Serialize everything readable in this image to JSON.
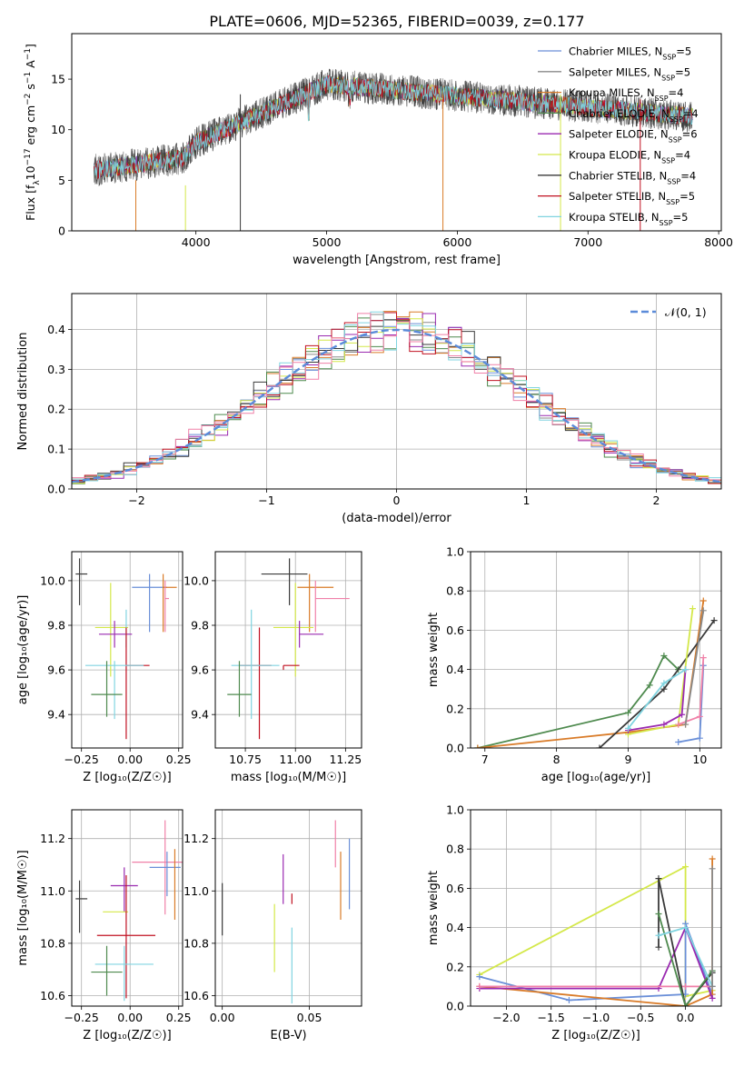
{
  "figure_title": "PLATE=0606, MJD=52365, FIBERID=0039, z=0.177",
  "colors": {
    "chabrier_miles": "#6a8fd8",
    "salpeter_miles": "#8a8a8a",
    "kroupa_miles": "#d97b28",
    "chabrier_elodie": "#4e8a4e",
    "salpeter_elodie": "#9a2ab0",
    "kroupa_elodie": "#d4e84a",
    "chabrier_stelib": "#3a3a3a",
    "salpeter_stelib": "#c01020",
    "kroupa_stelib": "#80d4e0",
    "pink": "#f080a8",
    "gauss": "#5b8bd9"
  },
  "chart_data": [
    {
      "type": "line",
      "panel": "spectrum",
      "xlabel": "wavelength [Angstrom, rest frame]",
      "ylabel_main": "Flux [f",
      "ylabel_sub": "λ",
      "ylabel_mid": "10",
      "ylabel_exp": "−17",
      "ylabel_rest": " erg cm",
      "ylabel_exp2": "−2",
      "ylabel_rest2": " s",
      "ylabel_exp3": "−1",
      "ylabel_rest3": " A",
      "ylabel_exp4": "−1",
      "ylabel_end": "]",
      "xlim": [
        3050,
        8020
      ],
      "ylim": [
        0,
        19.5
      ],
      "xticks": [
        "4000",
        "5000",
        "6000",
        "7000",
        "8000"
      ],
      "xtick_values": [
        4000,
        5000,
        6000,
        7000,
        8000
      ],
      "yticks": [
        "0",
        "5",
        "10",
        "15"
      ],
      "ytick_values": [
        0,
        5,
        10,
        15
      ],
      "x_range": [
        3220,
        7800
      ],
      "dips": [
        [
          3540,
          5
        ],
        [
          3920,
          4.5
        ],
        [
          4340,
          13.5
        ],
        [
          5890,
          13.5
        ],
        [
          6790,
          13.5
        ],
        [
          7400,
          13
        ]
      ],
      "legend_position": "top-right",
      "legend": [
        {
          "name": "Chabrier MILES, N",
          "sub": "SSP",
          "tail": "=5",
          "color_key": "chabrier_miles"
        },
        {
          "name": "Salpeter MILES, N",
          "sub": "SSP",
          "tail": "=5",
          "color_key": "salpeter_miles"
        },
        {
          "name": "Kroupa MILES, N",
          "sub": "SSP",
          "tail": "=4",
          "color_key": "kroupa_miles"
        },
        {
          "name": "Chabrier ELODIE, N",
          "sub": "SSP",
          "tail": "=4",
          "color_key": "chabrier_elodie"
        },
        {
          "name": "Salpeter ELODIE, N",
          "sub": "SSP",
          "tail": "=6",
          "color_key": "salpeter_elodie"
        },
        {
          "name": "Kroupa ELODIE, N",
          "sub": "SSP",
          "tail": "=4",
          "color_key": "kroupa_elodie"
        },
        {
          "name": "Chabrier STELIB, N",
          "sub": "SSP",
          "tail": "=4",
          "color_key": "chabrier_stelib"
        },
        {
          "name": "Salpeter STELIB, N",
          "sub": "SSP",
          "tail": "=5",
          "color_key": "salpeter_stelib"
        },
        {
          "name": "Kroupa STELIB, N",
          "sub": "SSP",
          "tail": "=5",
          "color_key": "kroupa_stelib"
        }
      ]
    },
    {
      "type": "line",
      "panel": "residuals",
      "xlabel": "(data-model)/error",
      "ylabel": "Normed distribution",
      "xlim": [
        -2.5,
        2.5
      ],
      "ylim": [
        0,
        0.49
      ],
      "xticks": [
        "−2",
        "−1",
        "0",
        "1",
        "2"
      ],
      "xtick_values": [
        -2,
        -1,
        0,
        1,
        2
      ],
      "yticks": [
        "0.0",
        "0.1",
        "0.2",
        "0.3",
        "0.4"
      ],
      "ytick_values": [
        0,
        0.1,
        0.2,
        0.3,
        0.4
      ],
      "grid": true,
      "bin_width": 0.1,
      "legend_position": "top-right",
      "gauss_label": "𝒩(0, 1)"
    },
    {
      "type": "scatter",
      "panel": "age-vs-Z",
      "xlabel": "Z [log₁₀(Z/Z☉)]",
      "ylabel": "age  [log₁₀(age/yr)]",
      "xlim": [
        -0.3,
        0.27
      ],
      "ylim": [
        9.25,
        10.13
      ],
      "xticks": [
        "−0.25",
        "0.00",
        "0.25"
      ],
      "xtick_values": [
        -0.25,
        0,
        0.25
      ],
      "yticks": [
        "9.4",
        "9.6",
        "9.8",
        "10.0"
      ],
      "ytick_values": [
        9.4,
        9.6,
        9.8,
        10.0
      ],
      "grid": true,
      "points": [
        {
          "x": -0.26,
          "y": 10.03,
          "xerr": [
            0.02,
            0.04
          ],
          "yerr": [
            0.14,
            0.07
          ],
          "c": "chabrier_stelib"
        },
        {
          "x": 0.1,
          "y": 9.97,
          "xerr": [
            0.09,
            0.09
          ],
          "yerr": [
            0.2,
            0.06
          ],
          "c": "chabrier_miles"
        },
        {
          "x": 0.17,
          "y": 9.97,
          "xerr": [
            0.0,
            0.07
          ],
          "yerr": [
            0.2,
            0.06
          ],
          "c": "kroupa_miles"
        },
        {
          "x": 0.18,
          "y": 9.92,
          "xerr": [
            0.0,
            0.02
          ],
          "yerr": [
            0.15,
            0.08
          ],
          "c": "pink"
        },
        {
          "x": -0.1,
          "y": 9.79,
          "xerr": [
            0.08,
            0.09
          ],
          "yerr": [
            0.22,
            0.2
          ],
          "c": "kroupa_elodie"
        },
        {
          "x": -0.08,
          "y": 9.76,
          "xerr": [
            0.08,
            0.09
          ],
          "yerr": [
            0.06,
            0.06
          ],
          "c": "salpeter_elodie"
        },
        {
          "x": -0.02,
          "y": 9.75,
          "xerr": [
            0.0,
            0.0
          ],
          "yerr": [
            0.05,
            0.12
          ],
          "c": "kroupa_stelib"
        },
        {
          "x": -0.02,
          "y": 9.62,
          "xerr": [
            0.0,
            0.12
          ],
          "yerr": [
            0.33,
            0.17
          ],
          "c": "salpeter_stelib"
        },
        {
          "x": -0.08,
          "y": 9.62,
          "xerr": [
            0.15,
            0.15
          ],
          "yerr": [
            0.24,
            0.02
          ],
          "c": "kroupa_stelib"
        },
        {
          "x": -0.12,
          "y": 9.49,
          "xerr": [
            0.08,
            0.08
          ],
          "yerr": [
            0.1,
            0.15
          ],
          "c": "chabrier_elodie"
        }
      ]
    },
    {
      "type": "scatter",
      "panel": "age-vs-mass",
      "xlabel": "mass [log₁₀(M/M☉)]",
      "ylabel": "",
      "xlim": [
        10.6,
        11.33
      ],
      "ylim": [
        9.25,
        10.13
      ],
      "xticks": [
        "10.75",
        "11.00",
        "11.25"
      ],
      "xtick_values": [
        10.75,
        11.0,
        11.25
      ],
      "yticks": [
        "9.4",
        "9.6",
        "9.8",
        "10.0"
      ],
      "ytick_values": [
        9.4,
        9.6,
        9.8,
        10.0
      ],
      "grid": true,
      "points": [
        {
          "x": 10.97,
          "y": 10.03,
          "xerr": [
            0.14,
            0.09
          ],
          "yerr": [
            0.14,
            0.07
          ],
          "c": "chabrier_stelib"
        },
        {
          "x": 11.07,
          "y": 9.97,
          "xerr": [
            0.06,
            0.12
          ],
          "yerr": [
            0.2,
            0.06
          ],
          "c": "kroupa_miles"
        },
        {
          "x": 11.1,
          "y": 9.92,
          "xerr": [
            0.0,
            0.17
          ],
          "yerr": [
            0.15,
            0.08
          ],
          "c": "pink"
        },
        {
          "x": 11.0,
          "y": 9.79,
          "xerr": [
            0.11,
            0.09
          ],
          "yerr": [
            0.22,
            0.2
          ],
          "c": "kroupa_elodie"
        },
        {
          "x": 11.02,
          "y": 9.76,
          "xerr": [
            0.0,
            0.12
          ],
          "yerr": [
            0.06,
            0.06
          ],
          "c": "salpeter_elodie"
        },
        {
          "x": 10.82,
          "y": 9.62,
          "xerr": [
            0.1,
            0.06
          ],
          "yerr": [
            0.33,
            0.17
          ],
          "c": "salpeter_stelib"
        },
        {
          "x": 10.78,
          "y": 9.62,
          "xerr": [
            0.1,
            0.14
          ],
          "yerr": [
            0.24,
            0.25
          ],
          "c": "kroupa_stelib"
        },
        {
          "x": 10.94,
          "y": 9.62,
          "xerr": [
            0.0,
            0.08
          ],
          "yerr": [
            0.02,
            0.0
          ],
          "c": "salpeter_stelib"
        },
        {
          "x": 10.72,
          "y": 9.49,
          "xerr": [
            0.06,
            0.06
          ],
          "yerr": [
            0.1,
            0.15
          ],
          "c": "chabrier_elodie"
        }
      ]
    },
    {
      "type": "line",
      "panel": "mass-weight-vs-age",
      "xlabel": "age  [log₁₀(age/yr)]",
      "ylabel": "mass weight",
      "xlim": [
        6.8,
        10.3
      ],
      "ylim": [
        0,
        1.0
      ],
      "xticks": [
        "7",
        "8",
        "9",
        "10"
      ],
      "xtick_values": [
        7,
        8,
        9,
        10
      ],
      "yticks": [
        "0.0",
        "0.2",
        "0.4",
        "0.6",
        "0.8",
        "1.0"
      ],
      "ytick_values": [
        0,
        0.2,
        0.4,
        0.6,
        0.8,
        1.0
      ],
      "grid": true,
      "series": [
        {
          "c": "chabrier_elodie",
          "x": [
            6.9,
            9.0,
            9.3,
            9.5,
            9.7
          ],
          "y": [
            0.0,
            0.18,
            0.32,
            0.47,
            0.4
          ]
        },
        {
          "c": "kroupa_miles",
          "x": [
            6.9,
            9.0,
            9.8,
            10.05
          ],
          "y": [
            0.0,
            0.08,
            0.12,
            0.75
          ]
        },
        {
          "c": "chabrier_stelib",
          "x": [
            8.6,
            9.5,
            10.2
          ],
          "y": [
            0.0,
            0.3,
            0.65
          ]
        },
        {
          "c": "kroupa_elodie",
          "x": [
            9.0,
            9.7,
            9.9
          ],
          "y": [
            0.07,
            0.12,
            0.71
          ]
        },
        {
          "c": "chabrier_miles",
          "x": [
            9.7,
            10.0,
            10.05
          ],
          "y": [
            0.03,
            0.05,
            0.42
          ]
        },
        {
          "c": "salpeter_elodie",
          "x": [
            9.0,
            9.5,
            9.75,
            9.8
          ],
          "y": [
            0.09,
            0.12,
            0.17,
            0.4
          ]
        },
        {
          "c": "pink",
          "x": [
            9.7,
            10.0,
            10.05
          ],
          "y": [
            0.12,
            0.16,
            0.46
          ]
        },
        {
          "c": "kroupa_stelib",
          "x": [
            9.0,
            9.5,
            9.8
          ],
          "y": [
            0.1,
            0.33,
            0.4
          ]
        },
        {
          "c": "salpeter_miles",
          "x": [
            9.8,
            10.05
          ],
          "y": [
            0.12,
            0.7
          ]
        }
      ]
    },
    {
      "type": "scatter",
      "panel": "mass-vs-Z",
      "xlabel": "Z [log₁₀(Z/Z☉)]",
      "ylabel": "mass [log₁₀(M/M☉)]",
      "xlim": [
        -0.3,
        0.27
      ],
      "ylim": [
        10.56,
        11.31
      ],
      "xticks": [
        "−0.25",
        "0.00",
        "0.25"
      ],
      "xtick_values": [
        -0.25,
        0,
        0.25
      ],
      "yticks": [
        "10.6",
        "10.8",
        "11.0",
        "11.2"
      ],
      "ytick_values": [
        10.6,
        10.8,
        11.0,
        11.2
      ],
      "grid": true,
      "points": [
        {
          "x": -0.26,
          "y": 10.97,
          "xerr": [
            0.02,
            0.04
          ],
          "yerr": [
            0.13,
            0.07
          ],
          "c": "chabrier_stelib"
        },
        {
          "x": 0.18,
          "y": 11.11,
          "xerr": [
            0.17,
            0.09
          ],
          "yerr": [
            0.2,
            0.16
          ],
          "c": "pink"
        },
        {
          "x": 0.19,
          "y": 11.09,
          "xerr": [
            0.09,
            0.07
          ],
          "yerr": [
            0.11,
            0.06
          ],
          "c": "chabrier_miles"
        },
        {
          "x": 0.23,
          "y": 11.05,
          "xerr": [
            0.0,
            0.0
          ],
          "yerr": [
            0.16,
            0.11
          ],
          "c": "kroupa_miles"
        },
        {
          "x": -0.03,
          "y": 11.02,
          "xerr": [
            0.07,
            0.07
          ],
          "yerr": [
            0.1,
            0.07
          ],
          "c": "salpeter_elodie"
        },
        {
          "x": -0.08,
          "y": 10.92,
          "xerr": [
            0.06,
            0.07
          ],
          "yerr": [
            0.0,
            0.0
          ],
          "c": "kroupa_elodie"
        },
        {
          "x": -0.02,
          "y": 10.83,
          "xerr": [
            0.15,
            0.15
          ],
          "yerr": [
            0.24,
            0.23
          ],
          "c": "salpeter_stelib"
        },
        {
          "x": -0.03,
          "y": 10.72,
          "xerr": [
            0.15,
            0.15
          ],
          "yerr": [
            0.14,
            0.07
          ],
          "c": "kroupa_stelib"
        },
        {
          "x": -0.12,
          "y": 10.69,
          "xerr": [
            0.08,
            0.08
          ],
          "yerr": [
            0.09,
            0.1
          ],
          "c": "chabrier_elodie"
        }
      ]
    },
    {
      "type": "scatter",
      "panel": "mass-vs-ebv",
      "xlabel": "E(B-V)",
      "ylabel": "",
      "xlim": [
        -0.004,
        0.08
      ],
      "ylim": [
        10.56,
        11.31
      ],
      "xticks": [
        "0.00",
        "0.05"
      ],
      "xtick_values": [
        0,
        0.05
      ],
      "yticks": [
        "10.6",
        "10.8",
        "11.0",
        "11.2"
      ],
      "ytick_values": [
        10.6,
        10.8,
        11.0,
        11.2
      ],
      "grid": true,
      "points": [
        {
          "x": 0.0,
          "y": 10.93,
          "xerr": [
            0,
            0
          ],
          "yerr": [
            0.1,
            0.1
          ],
          "c": "chabrier_stelib"
        },
        {
          "x": 0.03,
          "y": 10.75,
          "xerr": [
            0,
            0
          ],
          "yerr": [
            0.06,
            0.2
          ],
          "c": "kroupa_elodie"
        },
        {
          "x": 0.035,
          "y": 11.02,
          "xerr": [
            0,
            0
          ],
          "yerr": [
            0.07,
            0.12
          ],
          "c": "salpeter_elodie"
        },
        {
          "x": 0.04,
          "y": 10.95,
          "xerr": [
            0,
            0
          ],
          "yerr": [
            0.0,
            0.04
          ],
          "c": "salpeter_stelib"
        },
        {
          "x": 0.04,
          "y": 10.78,
          "xerr": [
            0,
            0
          ],
          "yerr": [
            0.21,
            0.08
          ],
          "c": "kroupa_stelib"
        },
        {
          "x": 0.065,
          "y": 11.17,
          "xerr": [
            0,
            0
          ],
          "yerr": [
            0.08,
            0.1
          ],
          "c": "pink"
        },
        {
          "x": 0.068,
          "y": 11.05,
          "xerr": [
            0,
            0
          ],
          "yerr": [
            0.16,
            0.1
          ],
          "c": "kroupa_miles"
        },
        {
          "x": 0.073,
          "y": 11.05,
          "xerr": [
            0,
            0
          ],
          "yerr": [
            0.12,
            0.15
          ],
          "c": "chabrier_miles"
        }
      ]
    },
    {
      "type": "line",
      "panel": "mass-weight-vs-Z",
      "xlabel": "Z [log₁₀(Z/Z☉)]",
      "ylabel": "mass weight",
      "xlim": [
        -2.4,
        0.4
      ],
      "ylim": [
        0,
        1.0
      ],
      "xticks": [
        "−2.0",
        "−1.5",
        "−1.0",
        "−0.5",
        "0.0"
      ],
      "xtick_values": [
        -2.0,
        -1.5,
        -1.0,
        -0.5,
        0.0
      ],
      "yticks": [
        "0.0",
        "0.2",
        "0.4",
        "0.6",
        "0.8",
        "1.0"
      ],
      "ytick_values": [
        0,
        0.2,
        0.4,
        0.6,
        0.8,
        1.0
      ],
      "grid": true,
      "series": [
        {
          "c": "kroupa_elodie",
          "x": [
            -2.3,
            0.0,
            0.0,
            0.3
          ],
          "y": [
            0.16,
            0.71,
            0.05,
            0.08
          ]
        },
        {
          "c": "chabrier_miles",
          "x": [
            -2.3,
            -1.3,
            0.0,
            0.0,
            0.3
          ],
          "y": [
            0.15,
            0.03,
            0.06,
            0.42,
            0.06
          ]
        },
        {
          "c": "kroupa_miles",
          "x": [
            -2.3,
            0.0,
            0.3,
            0.3
          ],
          "y": [
            0.1,
            0.0,
            0.06,
            0.75
          ]
        },
        {
          "c": "salpeter_elodie",
          "x": [
            -2.3,
            -0.3,
            0.0,
            0.3
          ],
          "y": [
            0.09,
            0.09,
            0.4,
            0.04
          ]
        },
        {
          "c": "pink",
          "x": [
            -2.3,
            0.0,
            0.3
          ],
          "y": [
            0.1,
            0.1,
            0.1
          ]
        },
        {
          "c": "chabrier_stelib",
          "x": [
            -0.3,
            -0.3,
            0.0,
            0.3
          ],
          "y": [
            0.3,
            0.65,
            0.0,
            0.17
          ]
        },
        {
          "c": "chabrier_elodie",
          "x": [
            -0.3,
            0.0,
            0.3
          ],
          "y": [
            0.47,
            0.0,
            0.18
          ]
        },
        {
          "c": "kroupa_stelib",
          "x": [
            -0.3,
            0.0,
            0.3
          ],
          "y": [
            0.36,
            0.4,
            0.1
          ]
        },
        {
          "c": "salpeter_miles",
          "x": [
            0.3,
            0.3
          ],
          "y": [
            0.1,
            0.7
          ]
        }
      ]
    }
  ]
}
